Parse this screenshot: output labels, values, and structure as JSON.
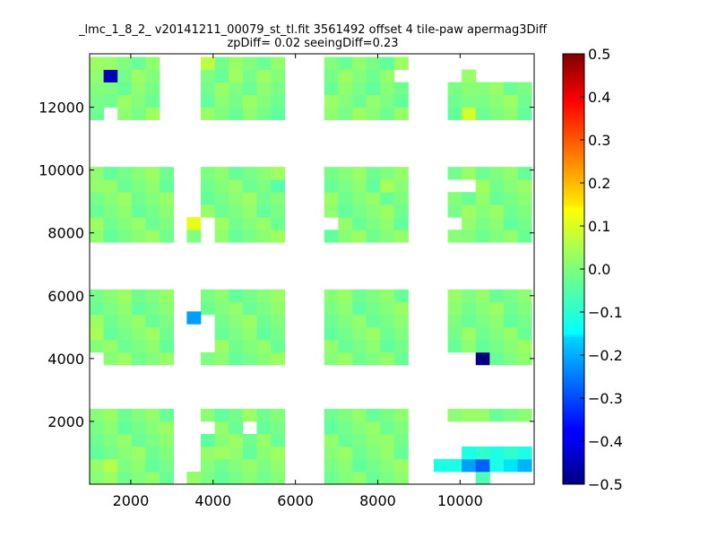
{
  "chart_data": {
    "type": "heatmap",
    "title_line1": "_lmc_1_8_2_ v20141211_00079_st_tl.fit 3561492 offset 4 tile-paw apermag3Diff",
    "title_line2": "zpDiff= 0.02 seeingDiff=0.23",
    "xlim": [
      1000,
      11800
    ],
    "ylim": [
      0,
      13700
    ],
    "x_ticks": [
      2000,
      4000,
      6000,
      8000,
      10000
    ],
    "y_ticks": [
      2000,
      4000,
      6000,
      8000,
      10000,
      12000
    ],
    "x_tick_labels": [
      "2000",
      "4000",
      "6000",
      "8000",
      "10000"
    ],
    "y_tick_labels": [
      "2000",
      "4000",
      "6000",
      "8000",
      "10000",
      "12000"
    ],
    "colorbar": {
      "colormap": "jet",
      "vmin": -0.5,
      "vmax": 0.5,
      "ticks": [
        0.5,
        0.4,
        0.3,
        0.2,
        0.1,
        0.0,
        -0.1,
        -0.2,
        -0.3,
        -0.4,
        -0.5
      ],
      "tick_labels": [
        "0.5",
        "0.4",
        "0.3",
        "0.2",
        "0.1",
        "0.0",
        "−0.1",
        "−0.2",
        "−0.3",
        "−0.4",
        "−0.5"
      ]
    },
    "cell_size": [
      340,
      400
    ],
    "column_blocks": [
      {
        "x_start": 1000,
        "cols": 6
      },
      {
        "x_start": 3700,
        "cols": 6
      },
      {
        "x_start": 6700,
        "cols": 6
      },
      {
        "x_start": 9700,
        "cols": 6
      }
    ],
    "row_blocks": [
      {
        "y_start": 0,
        "rows": 6
      },
      {
        "y_start": 3800,
        "rows": 6
      },
      {
        "y_start": 7700,
        "rows": 6
      },
      {
        "y_start": 11600,
        "rows": 6
      }
    ],
    "background_value": 0.0,
    "missing_cells": [
      {
        "x": 9700,
        "y": 1600
      },
      {
        "x": 10040,
        "y": 1600
      },
      {
        "x": 10380,
        "y": 1600
      },
      {
        "x": 10720,
        "y": 1600
      },
      {
        "x": 11060,
        "y": 1600
      },
      {
        "x": 11400,
        "y": 1600
      },
      {
        "x": 9700,
        "y": 1200
      },
      {
        "x": 10040,
        "y": 1200
      },
      {
        "x": 10380,
        "y": 1200
      },
      {
        "x": 10720,
        "y": 1200
      },
      {
        "x": 11060,
        "y": 1200
      },
      {
        "x": 11400,
        "y": 1200
      },
      {
        "x": 9700,
        "y": 800
      },
      {
        "x": 9700,
        "y": 0
      },
      {
        "x": 10040,
        "y": 0
      },
      {
        "x": 10720,
        "y": 0
      },
      {
        "x": 11060,
        "y": 0
      },
      {
        "x": 11400,
        "y": 0
      },
      {
        "x": 3700,
        "y": 1600
      },
      {
        "x": 4720,
        "y": 1600
      },
      {
        "x": 1000,
        "y": 3800
      },
      {
        "x": 9700,
        "y": 3800
      },
      {
        "x": 10040,
        "y": 3800
      },
      {
        "x": 3700,
        "y": 4200
      },
      {
        "x": 3700,
        "y": 4600
      },
      {
        "x": 3700,
        "y": 5000
      },
      {
        "x": 6700,
        "y": 8100
      },
      {
        "x": 9700,
        "y": 8100
      },
      {
        "x": 3700,
        "y": 7700
      },
      {
        "x": 3700,
        "y": 8100
      },
      {
        "x": 9700,
        "y": 9300
      },
      {
        "x": 10040,
        "y": 9300
      },
      {
        "x": 2700,
        "y": 11600
      },
      {
        "x": 2700,
        "y": 12000
      },
      {
        "x": 2700,
        "y": 12400
      },
      {
        "x": 2700,
        "y": 12800
      },
      {
        "x": 2700,
        "y": 13200
      },
      {
        "x": 1340,
        "y": 11600
      },
      {
        "x": 10380,
        "y": 12800
      },
      {
        "x": 8400,
        "y": 12800
      },
      {
        "x": 9700,
        "y": 12800
      },
      {
        "x": 9700,
        "y": 13200
      },
      {
        "x": 10040,
        "y": 13200
      },
      {
        "x": 10380,
        "y": 13200
      },
      {
        "x": 10720,
        "y": 13200
      },
      {
        "x": 11060,
        "y": 13200
      },
      {
        "x": 11400,
        "y": 13200
      },
      {
        "x": 10720,
        "y": 12800
      },
      {
        "x": 11060,
        "y": 12800
      },
      {
        "x": 11400,
        "y": 12800
      }
    ],
    "extra_cells": [
      {
        "x": 3360,
        "y": 7700,
        "value": 0.0
      },
      {
        "x": 3360,
        "y": 8100,
        "value": 0.1
      },
      {
        "x": 3360,
        "y": 0,
        "value": 0.02
      },
      {
        "x": 9360,
        "y": 400,
        "value": -0.1
      },
      {
        "x": 3360,
        "y": 5100,
        "value": -0.22
      }
    ],
    "cells": [
      {
        "x": 1340,
        "y": 12800,
        "value": -0.45
      },
      {
        "x": 10380,
        "y": 3800,
        "value": -0.5
      },
      {
        "x": 9700,
        "y": 400,
        "value": -0.1
      },
      {
        "x": 10040,
        "y": 400,
        "value": -0.22
      },
      {
        "x": 10380,
        "y": 400,
        "value": -0.28
      },
      {
        "x": 10720,
        "y": 400,
        "value": -0.1
      },
      {
        "x": 11060,
        "y": 400,
        "value": -0.15
      },
      {
        "x": 11400,
        "y": 400,
        "value": -0.2
      },
      {
        "x": 10040,
        "y": 800,
        "value": -0.1
      },
      {
        "x": 10380,
        "y": 800,
        "value": -0.08
      },
      {
        "x": 10720,
        "y": 800,
        "value": -0.1
      },
      {
        "x": 11060,
        "y": 800,
        "value": -0.08
      },
      {
        "x": 11400,
        "y": 800,
        "value": -0.1
      },
      {
        "x": 10380,
        "y": 0,
        "value": -0.05
      },
      {
        "x": 10040,
        "y": 11600,
        "value": 0.08
      },
      {
        "x": 2350,
        "y": 13200,
        "value": 0.05
      },
      {
        "x": 3700,
        "y": 13200,
        "value": 0.06
      },
      {
        "x": 4380,
        "y": 12800,
        "value": 0.03
      },
      {
        "x": 1000,
        "y": 9300,
        "value": 0.02
      },
      {
        "x": 7400,
        "y": 9300,
        "value": 0.02
      },
      {
        "x": 8060,
        "y": 9300,
        "value": 0.04
      },
      {
        "x": 4720,
        "y": 9300,
        "value": -0.02
      },
      {
        "x": 5400,
        "y": 9300,
        "value": -0.04
      },
      {
        "x": 1000,
        "y": 4600,
        "value": 0.04
      },
      {
        "x": 2000,
        "y": 4200,
        "value": 0.05
      },
      {
        "x": 6700,
        "y": 4600,
        "value": -0.03
      },
      {
        "x": 7740,
        "y": 5000,
        "value": -0.04
      },
      {
        "x": 1340,
        "y": 400,
        "value": 0.05
      },
      {
        "x": 2000,
        "y": 800,
        "value": 0.06
      },
      {
        "x": 2680,
        "y": 0,
        "value": 0.04
      },
      {
        "x": 4040,
        "y": 800,
        "value": 0.03
      },
      {
        "x": 7060,
        "y": 400,
        "value": 0.03
      },
      {
        "x": 8060,
        "y": 1200,
        "value": 0.02
      }
    ]
  }
}
